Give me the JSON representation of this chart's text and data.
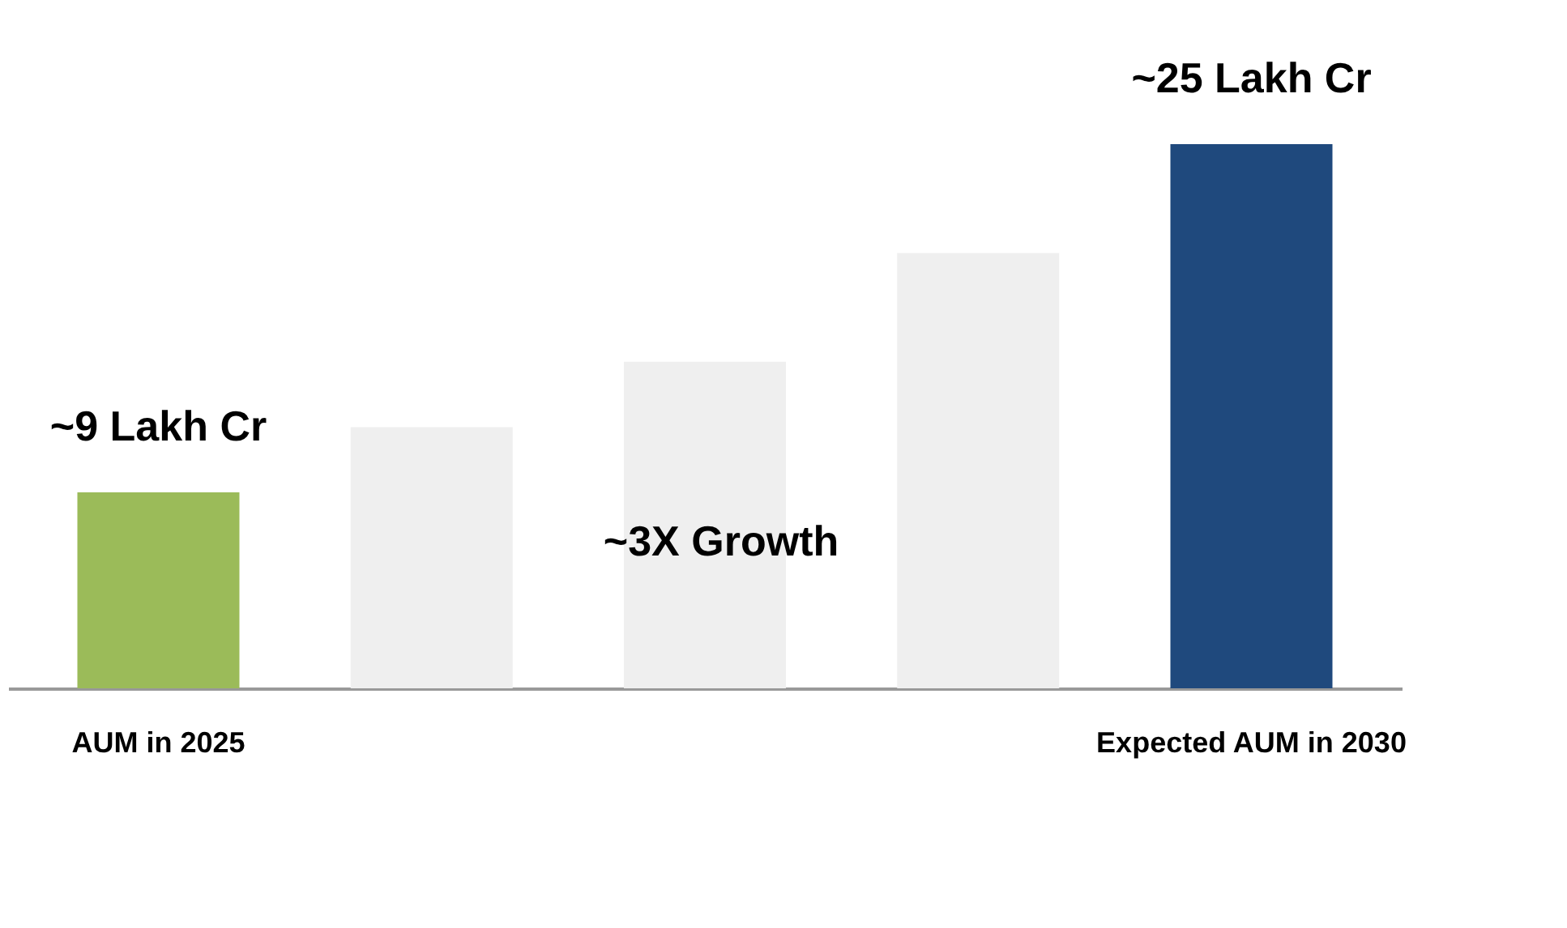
{
  "chart_data": {
    "type": "bar",
    "tick_labels": "x",
    "categories": [
      "AUM in 2025",
      null,
      null,
      null,
      "Expected AUM in 2030"
    ],
    "values": [
      9,
      12,
      15,
      20,
      25
    ],
    "colors": [
      "#9bbb59",
      "#efefef",
      "#efefef",
      "#efefef",
      "#1f497d"
    ],
    "value_labels": [
      "~9 Lakh Cr",
      null,
      null,
      null,
      "~25 Lakh Cr"
    ],
    "annotations": [
      "~3X Growth"
    ],
    "grid": false,
    "legend": false
  }
}
